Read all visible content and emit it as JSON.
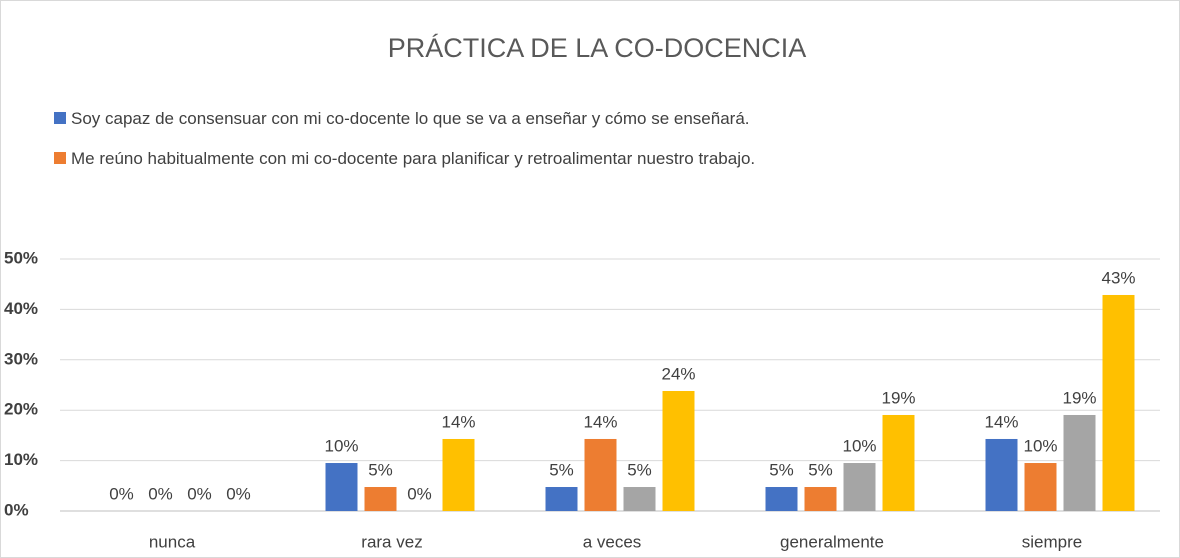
{
  "chart_data": {
    "type": "bar",
    "title": "PRÁCTICA DE LA CO-DOCENCIA",
    "categories": [
      "nunca",
      "rara vez",
      "a veces",
      "generalmente",
      "siempre"
    ],
    "series": [
      {
        "name": "Soy capaz de consensuar con mi co-docente lo que se va a enseñar y cómo se enseñará.",
        "color": "#4472c4",
        "values": [
          0,
          9.52,
          4.76,
          4.76,
          14.29
        ],
        "value_labels": [
          "0%",
          "10%",
          "5%",
          "5%",
          "14%"
        ]
      },
      {
        "name": "Me reúno habitualmente con mi co-docente para planificar y retroalimentar nuestro trabajo.",
        "color": "#ed7d31",
        "values": [
          0,
          4.76,
          14.29,
          4.76,
          9.52
        ],
        "value_labels": [
          "0%",
          "5%",
          "14%",
          "5%",
          "10%"
        ]
      },
      {
        "color": "#a5a5a5",
        "values": [
          0,
          0,
          4.76,
          9.52,
          19.05
        ],
        "value_labels": [
          "0%",
          "0%",
          "5%",
          "10%",
          "19%"
        ]
      },
      {
        "color": "#ffc000",
        "values": [
          0,
          14.29,
          23.81,
          19.05,
          42.86
        ],
        "value_labels": [
          "0%",
          "14%",
          "24%",
          "19%",
          "43%"
        ]
      }
    ],
    "ylim": [
      0,
      50
    ],
    "yticks": [
      {
        "value": 0,
        "label": "0%"
      },
      {
        "value": 10,
        "label": "10%"
      },
      {
        "value": 20,
        "label": "20%"
      },
      {
        "value": 30,
        "label": "30%"
      },
      {
        "value": 40,
        "label": "40%"
      },
      {
        "value": 50,
        "label": "50%"
      }
    ],
    "grid": true
  }
}
